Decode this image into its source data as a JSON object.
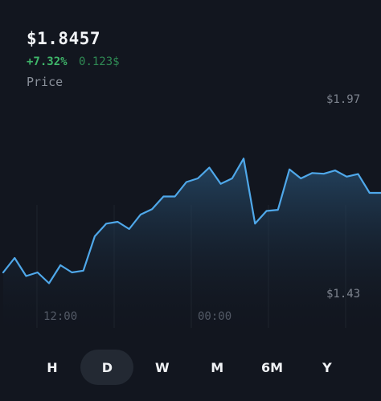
{
  "header": {
    "price": "$1.8457",
    "change_pct": "+7.32%",
    "change_abs": "0.123$",
    "label": "Price"
  },
  "axis": {
    "high_label": "$1.97",
    "low_label": "$1.43"
  },
  "time_labels": [
    "12:00",
    "00:00"
  ],
  "tabs": [
    {
      "label": "H",
      "active": false
    },
    {
      "label": "D",
      "active": true
    },
    {
      "label": "W",
      "active": false
    },
    {
      "label": "M",
      "active": false
    },
    {
      "label": "6M",
      "active": false
    },
    {
      "label": "Y",
      "active": false
    }
  ],
  "colors": {
    "line": "#4fa8ea",
    "positive": "#3fb66a",
    "background": "#12161f",
    "active_tab": "#232933"
  },
  "chart_data": {
    "type": "area",
    "y_range": [
      1.43,
      1.97
    ],
    "values": [
      1.51,
      1.55,
      1.5,
      1.51,
      1.48,
      1.53,
      1.51,
      1.515,
      1.61,
      1.645,
      1.65,
      1.63,
      1.67,
      1.685,
      1.72,
      1.72,
      1.76,
      1.77,
      1.8,
      1.755,
      1.77,
      1.825,
      1.645,
      1.68,
      1.683,
      1.795,
      1.77,
      1.785,
      1.783,
      1.792,
      1.775,
      1.782,
      1.73,
      1.73
    ]
  }
}
